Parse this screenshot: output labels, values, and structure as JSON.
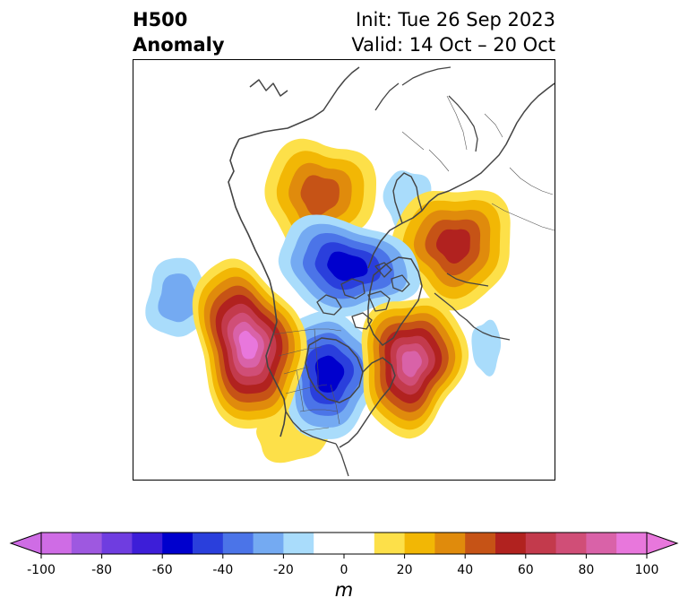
{
  "title": {
    "left_line1": "H500",
    "left_line2": "Anomaly",
    "right_line1": "Init: Tue 26 Sep 2023",
    "right_line2": "Valid: 14 Oct – 20 Oct"
  },
  "colorbar": {
    "units": "m",
    "min": -100,
    "max": 100,
    "extend": "both",
    "ticks": [
      -100,
      -80,
      -60,
      -40,
      -20,
      0,
      20,
      40,
      60,
      80,
      100
    ],
    "tick_labels": [
      "-100",
      "-80",
      "-60",
      "-40",
      "-20",
      "0",
      "20",
      "40",
      "60",
      "80",
      "100"
    ],
    "levels": [
      {
        "from": -100,
        "to": -90,
        "color": "#cf6ce5"
      },
      {
        "from": -90,
        "to": -80,
        "color": "#9e58e0"
      },
      {
        "from": -80,
        "to": -70,
        "color": "#6f3de0"
      },
      {
        "from": -70,
        "to": -60,
        "color": "#3d1ed8"
      },
      {
        "from": -60,
        "to": -50,
        "color": "#0000cd"
      },
      {
        "from": -50,
        "to": -40,
        "color": "#2a3fdc"
      },
      {
        "from": -40,
        "to": -30,
        "color": "#4b74e8"
      },
      {
        "from": -30,
        "to": -20,
        "color": "#74aaf2"
      },
      {
        "from": -20,
        "to": -10,
        "color": "#a9dcfb"
      },
      {
        "from": -10,
        "to": 0,
        "color": "#ffffff"
      },
      {
        "from": 0,
        "to": 10,
        "color": "#ffffff"
      },
      {
        "from": 10,
        "to": 20,
        "color": "#fde049"
      },
      {
        "from": 20,
        "to": 30,
        "color": "#f2b705"
      },
      {
        "from": 30,
        "to": 40,
        "color": "#e08b0c"
      },
      {
        "from": 40,
        "to": 50,
        "color": "#c65316"
      },
      {
        "from": 50,
        "to": 60,
        "color": "#b1221f"
      },
      {
        "from": 60,
        "to": 70,
        "color": "#c33a4c"
      },
      {
        "from": 70,
        "to": 80,
        "color": "#d04e77"
      },
      {
        "from": 80,
        "to": 90,
        "color": "#d962a8"
      },
      {
        "from": 90,
        "to": 100,
        "color": "#e877dc"
      }
    ],
    "under_color": "#cf6ce5",
    "over_color": "#e877dc"
  },
  "map": {
    "projection": "north-polar-stereographic",
    "field": "500 hPa geopotential height anomaly",
    "coastline_color": "#444444",
    "anomaly_centers": [
      {
        "region": "northeast-pacific",
        "value": 92,
        "shape": [
          [
            0,
            0
          ],
          [
            0.9,
            0.12
          ],
          [
            1.1,
            0.6
          ],
          [
            0.95,
            1.2
          ],
          [
            0.3,
            1.6
          ],
          [
            -0.4,
            1.5
          ],
          [
            -0.9,
            0.9
          ],
          [
            -0.8,
            0.2
          ],
          [
            -0.5,
            -0.5
          ],
          [
            0,
            -0.9
          ]
        ]
      },
      {
        "region": "north-atlantic",
        "value": 82,
        "shape": [
          [
            0,
            0
          ],
          [
            0.8,
            0.2
          ],
          [
            1.05,
            0.8
          ],
          [
            0.8,
            1.3
          ],
          [
            0.2,
            1.5
          ],
          [
            -0.5,
            1.2
          ],
          [
            -0.95,
            0.5
          ],
          [
            -0.9,
            -0.3
          ],
          [
            -0.4,
            -0.9
          ],
          [
            0.3,
            -0.7
          ]
        ]
      },
      {
        "region": "central-siberia",
        "value": 52,
        "shape": [
          [
            0,
            0
          ],
          [
            0.9,
            0.1
          ],
          [
            1.2,
            0.6
          ],
          [
            0.9,
            1.1
          ],
          [
            0.3,
            1.4
          ],
          [
            -0.5,
            1.3
          ],
          [
            -1.1,
            0.7
          ],
          [
            -1.0,
            0.0
          ],
          [
            -0.5,
            -0.6
          ],
          [
            0.3,
            -0.5
          ]
        ]
      },
      {
        "region": "northern-alaska",
        "value": 44,
        "shape": [
          [
            0,
            0
          ],
          [
            0.9,
            0.05
          ],
          [
            1.2,
            0.5
          ],
          [
            0.9,
            1.0
          ],
          [
            0.2,
            1.2
          ],
          [
            -0.6,
            1.0
          ],
          [
            -1.1,
            0.4
          ],
          [
            -0.9,
            -0.4
          ],
          [
            -0.3,
            -0.8
          ],
          [
            0.4,
            -0.6
          ]
        ]
      },
      {
        "region": "hudson-bay",
        "value": -58,
        "shape": [
          [
            0,
            0
          ],
          [
            0.9,
            0.2
          ],
          [
            1.1,
            0.7
          ],
          [
            0.7,
            1.3
          ],
          [
            0.0,
            1.5
          ],
          [
            -0.7,
            1.1
          ],
          [
            -1.0,
            0.4
          ],
          [
            -0.8,
            -0.4
          ],
          [
            -0.2,
            -0.9
          ],
          [
            0.5,
            -0.6
          ]
        ]
      },
      {
        "region": "arctic-ocean",
        "value": -55,
        "shape": [
          [
            0,
            0
          ],
          [
            1.0,
            0.1
          ],
          [
            1.2,
            0.5
          ],
          [
            0.8,
            0.9
          ],
          [
            0.1,
            1.0
          ],
          [
            -0.7,
            0.9
          ],
          [
            -1.2,
            0.4
          ],
          [
            -1.0,
            -0.3
          ],
          [
            -0.3,
            -0.6
          ],
          [
            0.5,
            -0.4
          ]
        ]
      },
      {
        "region": "subtropical-pacific",
        "value": -27,
        "shape": [
          [
            0,
            0
          ],
          [
            0.8,
            0.1
          ],
          [
            1.0,
            0.6
          ],
          [
            0.7,
            1.1
          ],
          [
            0.0,
            1.3
          ],
          [
            -0.7,
            1.0
          ],
          [
            -1.0,
            0.4
          ],
          [
            -0.7,
            -0.4
          ],
          [
            -0.1,
            -0.8
          ],
          [
            0.5,
            -0.5
          ]
        ]
      },
      {
        "region": "scandinavia",
        "value": -18,
        "shape": [
          [
            0,
            0
          ],
          [
            0.8,
            0.1
          ],
          [
            1.0,
            0.6
          ],
          [
            0.7,
            1.1
          ],
          [
            0.0,
            1.3
          ],
          [
            -0.7,
            1.0
          ],
          [
            -1.0,
            0.4
          ],
          [
            -0.7,
            -0.4
          ],
          [
            -0.1,
            -0.8
          ],
          [
            0.5,
            -0.5
          ]
        ]
      },
      {
        "region": "eastern-atlantic",
        "value": -17,
        "shape": [
          [
            0,
            0
          ],
          [
            0.8,
            0.1
          ],
          [
            1.0,
            0.6
          ],
          [
            0.7,
            1.1
          ],
          [
            0.0,
            1.3
          ],
          [
            -0.7,
            1.0
          ],
          [
            -1.0,
            0.4
          ],
          [
            -0.7,
            -0.4
          ],
          [
            -0.1,
            -0.8
          ],
          [
            0.5,
            -0.5
          ]
        ]
      },
      {
        "region": "southeast-us",
        "value": 18,
        "shape": [
          [
            0,
            0
          ],
          [
            0.8,
            0.1
          ],
          [
            1.0,
            0.6
          ],
          [
            0.7,
            1.1
          ],
          [
            0.0,
            1.3
          ],
          [
            -0.7,
            1.0
          ],
          [
            -1.0,
            0.4
          ],
          [
            -0.7,
            -0.4
          ],
          [
            -0.1,
            -0.8
          ],
          [
            0.5,
            -0.5
          ]
        ]
      }
    ]
  }
}
